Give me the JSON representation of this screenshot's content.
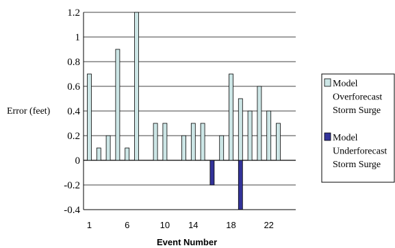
{
  "chart_data": {
    "type": "bar",
    "xlabel": "Event Number",
    "ylabel": "Error (feet)",
    "ylim": [
      -0.4,
      1.2
    ],
    "y_ticks": [
      1.2,
      1,
      0.8,
      0.6,
      0.4,
      0.2,
      0,
      -0.2,
      -0.4
    ],
    "y_tick_labels": [
      "1.2",
      "1",
      "0.8",
      "0.6",
      "0.4",
      "0.2",
      "0",
      "-0.2",
      "-0.4"
    ],
    "x_tick_labels": [
      "1",
      "6",
      "10",
      "14",
      "18",
      "22"
    ],
    "x_tick_events": [
      1,
      5,
      9,
      12,
      16,
      20
    ],
    "grid": true,
    "legend_position": "right",
    "series": [
      {
        "name": "Model Overforecast Storm Surge",
        "color": "#cce6e6",
        "events": [
          1,
          2,
          3,
          4,
          5,
          6,
          8,
          9,
          11,
          12,
          13,
          15,
          16,
          17,
          18,
          19,
          20,
          21
        ],
        "values": [
          0.7,
          0.1,
          0.2,
          0.9,
          0.1,
          1.2,
          0.3,
          0.3,
          0.2,
          0.3,
          0.3,
          0.2,
          0.7,
          0.5,
          0.4,
          0.6,
          0.4,
          0.3
        ]
      },
      {
        "name": "Model Underforecast Storm Surge",
        "color": "#333399",
        "events": [
          14,
          17
        ],
        "values": [
          -0.2,
          -0.4
        ]
      }
    ],
    "legend": {
      "items": [
        {
          "lines": [
            "Model",
            "Overforecast",
            "Storm Surge"
          ],
          "color": "#cce6e6"
        },
        {
          "lines": [
            "Model",
            "Underforecast",
            "Storm Surge"
          ],
          "color": "#333399"
        }
      ]
    }
  }
}
